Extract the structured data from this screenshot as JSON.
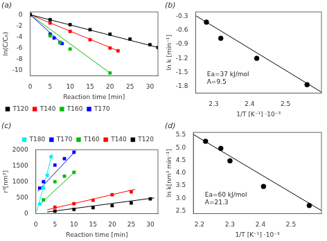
{
  "chart_data": [
    {
      "type": "scatter",
      "title": "(a)",
      "xlabel": "Reaction time [min]",
      "ylabel": "ln(C/C₀)",
      "xlim": [
        0,
        32
      ],
      "ylim": [
        -11,
        0.5
      ],
      "xticks": [
        0,
        5,
        10,
        15,
        20,
        25,
        30
      ],
      "yticks": [
        0,
        -2,
        -4,
        -6,
        -8,
        -10
      ],
      "grid": false,
      "legend": "lower left",
      "series": [
        {
          "name": "T120",
          "color": "#000000",
          "marker": "square",
          "x": [
            0,
            5,
            10,
            15,
            20,
            25,
            30,
            32
          ],
          "values": [
            0,
            -0.9,
            -1.8,
            -2.7,
            -3.5,
            -4.4,
            -5.4,
            -5.9
          ],
          "fit_x": [
            0,
            32
          ],
          "fit_values": [
            0,
            -5.9
          ]
        },
        {
          "name": "T140",
          "color": "#ff0000",
          "marker": "square",
          "x": [
            0,
            5,
            10,
            15,
            20,
            22
          ],
          "values": [
            0,
            -1.5,
            -3.0,
            -4.5,
            -6.0,
            -6.5
          ],
          "fit_x": [
            0,
            22
          ],
          "fit_values": [
            0,
            -6.5
          ]
        },
        {
          "name": "T160",
          "color": "#00bb00",
          "marker": "square",
          "x": [
            0,
            5,
            7.5,
            10,
            20
          ],
          "values": [
            0,
            -3.8,
            -5.0,
            -6.2,
            -10.5
          ],
          "fit_x": [
            0,
            20
          ],
          "fit_values": [
            0,
            -10.5
          ]
        },
        {
          "name": "T170",
          "color": "#0000ff",
          "marker": "square",
          "x": [
            0,
            5,
            6,
            7.5,
            8
          ],
          "values": [
            0,
            -3.5,
            -4.2,
            -5.0,
            -5.2
          ],
          "fit_x": [
            0,
            8
          ],
          "fit_values": [
            0,
            -5.2
          ]
        }
      ]
    },
    {
      "type": "scatter",
      "title": "(b)",
      "xlabel": "1/T [K⁻¹] ·10⁻³",
      "ylabel": "ln k [min⁻¹]",
      "xlim": [
        2.25,
        2.6
      ],
      "ylim": [
        -1.95,
        -0.2
      ],
      "xticks": [
        2.3,
        2.4,
        2.5
      ],
      "yticks": [
        -0.3,
        -0.6,
        -0.9,
        -1.2,
        -1.5,
        -1.8
      ],
      "grid": false,
      "annotation": "Ea=37 kJ/mol\nA=9.5",
      "series": [
        {
          "color": "#000000",
          "marker": "circle",
          "x": [
            2.28,
            2.32,
            2.42,
            2.56
          ],
          "values": [
            -0.42,
            -0.77,
            -1.2,
            -1.77
          ],
          "fit_x": [
            2.25,
            2.6
          ],
          "fit_values": [
            -0.28,
            -1.93
          ]
        }
      ]
    },
    {
      "type": "scatter",
      "title": "(c)",
      "xlabel": "Reaction time [min]",
      "ylabel": "r³[nm³]",
      "xlim": [
        0,
        32
      ],
      "ylim": [
        0,
        2000
      ],
      "xticks": [
        0,
        5,
        10,
        15,
        20,
        25,
        30
      ],
      "yticks": [
        0,
        500,
        1000,
        1500,
        2000
      ],
      "grid": false,
      "legend": "upper right",
      "series": [
        {
          "name": "T180",
          "color": "#00eeee",
          "marker": "square",
          "x": [
            1,
            2,
            3,
            4
          ],
          "values": [
            300,
            800,
            1200,
            1780
          ],
          "fit_x": [
            0.3,
            4.3
          ],
          "fit_values": [
            80,
            1870
          ]
        },
        {
          "name": "T170",
          "color": "#0000ff",
          "marker": "square",
          "x": [
            1,
            2,
            5,
            7.5,
            10
          ],
          "values": [
            800,
            1000,
            1520,
            1720,
            1920
          ],
          "fit_x": [
            0.5,
            10.5
          ],
          "fit_values": [
            700,
            1970
          ]
        },
        {
          "name": "T160",
          "color": "#00bb00",
          "marker": "square",
          "x": [
            2,
            5,
            7.5,
            10
          ],
          "values": [
            430,
            1000,
            1170,
            1290
          ],
          "fit_x": [
            1,
            10.5
          ],
          "fit_values": [
            280,
            1340
          ]
        },
        {
          "name": "T140",
          "color": "#ff0000",
          "marker": "square",
          "x": [
            5,
            10,
            15,
            20,
            25
          ],
          "values": [
            200,
            310,
            420,
            590,
            680
          ],
          "fit_x": [
            3,
            26
          ],
          "fit_values": [
            120,
            760
          ]
        },
        {
          "name": "T120",
          "color": "#000000",
          "marker": "square",
          "x": [
            5,
            10,
            15,
            20,
            25,
            30
          ],
          "values": [
            75,
            130,
            185,
            250,
            330,
            460
          ],
          "fit_x": [
            3,
            31
          ],
          "fit_values": [
            50,
            490
          ]
        }
      ]
    },
    {
      "type": "scatter",
      "title": "(d)",
      "xlabel": "1/T [K⁻¹] ·10⁻³",
      "ylabel": "ln k[nm³ min⁻¹]",
      "xlim": [
        2.18,
        2.6
      ],
      "ylim": [
        2.4,
        5.6
      ],
      "xticks": [
        2.2,
        2.3,
        2.4,
        2.5
      ],
      "yticks": [
        2.5,
        {
          "value": 3.0,
          "label": "3.0"
        },
        3.5,
        {
          "value": 4.0,
          "label": "4.0"
        },
        4.5,
        {
          "value": 5.0,
          "label": "5.0"
        },
        5.5
      ],
      "grid": false,
      "annotation": "Ea=60 kJ/mol\nA=21.3",
      "series": [
        {
          "color": "#000000",
          "marker": "circle",
          "x": [
            2.22,
            2.27,
            2.3,
            2.41,
            2.56
          ],
          "values": [
            5.25,
            4.97,
            4.48,
            3.47,
            2.72
          ],
          "fit_x": [
            2.18,
            2.6
          ],
          "fit_values": [
            5.52,
            2.52
          ]
        }
      ]
    }
  ]
}
